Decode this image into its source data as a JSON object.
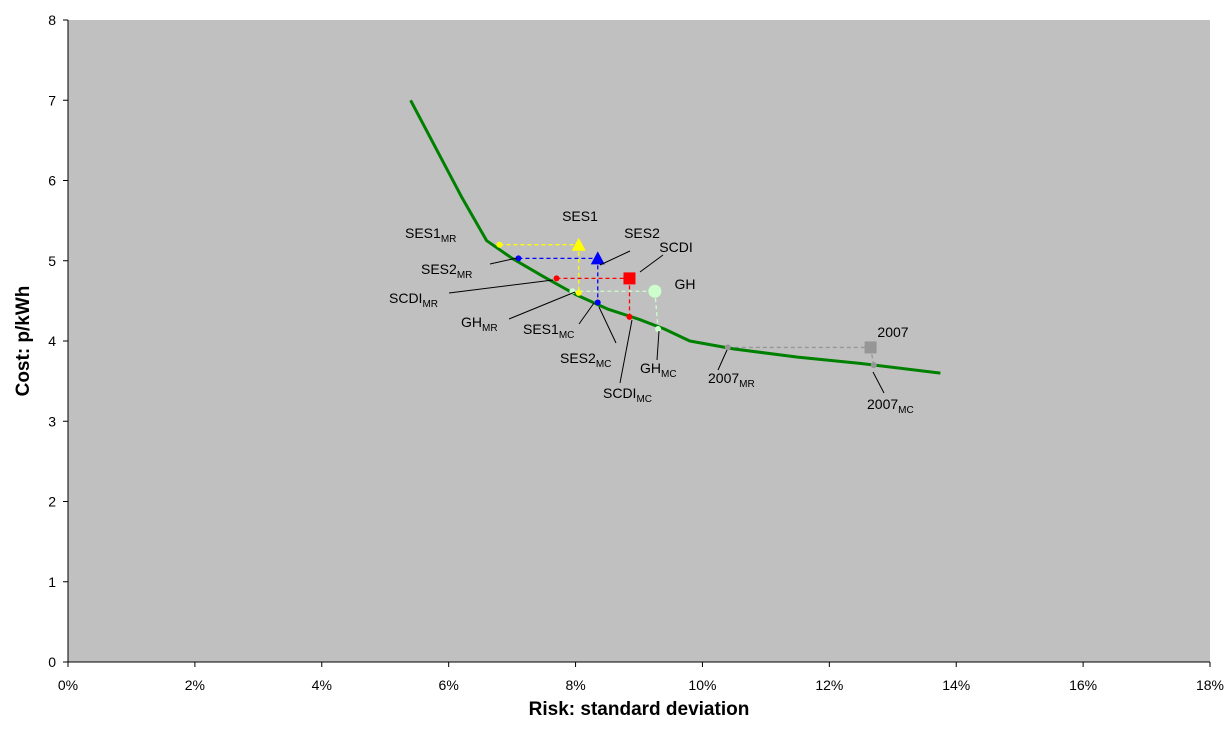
{
  "chart_data": {
    "type": "scatter",
    "title": "",
    "xlabel": "Risk: standard deviation",
    "ylabel": "Cost: p/kWh",
    "xlim": [
      0,
      18
    ],
    "ylim": [
      0,
      8
    ],
    "x_ticks": [
      0,
      2,
      4,
      6,
      8,
      10,
      12,
      14,
      16,
      18
    ],
    "x_tick_labels": [
      "0%",
      "2%",
      "4%",
      "6%",
      "8%",
      "10%",
      "12%",
      "14%",
      "16%",
      "18%"
    ],
    "y_ticks": [
      0,
      1,
      2,
      3,
      4,
      5,
      6,
      7,
      8
    ],
    "y_tick_labels": [
      "0",
      "1",
      "2",
      "3",
      "4",
      "5",
      "6",
      "7",
      "8"
    ],
    "grid": false,
    "legend": "none",
    "colors": {
      "plot_area": "#c0c0c0",
      "frontier": "#008000",
      "SES1": "#ffff00",
      "SES2": "#0000ff",
      "SCDI": "#ff0000",
      "GH": "#ccffcc",
      "2007": "#969696"
    },
    "frontier": {
      "x": [
        5.4,
        5.8,
        6.2,
        6.6,
        7.0,
        7.5,
        8.0,
        8.5,
        9.0,
        9.4,
        9.8,
        10.5,
        11.5,
        12.5,
        13.75
      ],
      "y": [
        7.0,
        6.4,
        5.8,
        5.25,
        5.03,
        4.8,
        4.58,
        4.4,
        4.27,
        4.15,
        4.0,
        3.9,
        3.8,
        3.72,
        3.6
      ]
    },
    "portfolios": [
      {
        "name": "SES1",
        "marker": "triangle",
        "x": 8.05,
        "y": 5.2,
        "mr": {
          "x": 6.8,
          "y": 5.2
        },
        "mc": {
          "x": 8.05,
          "y": 4.6
        }
      },
      {
        "name": "SES2",
        "marker": "triangle",
        "x": 8.35,
        "y": 5.03,
        "mr": {
          "x": 7.1,
          "y": 5.03
        },
        "mc": {
          "x": 8.35,
          "y": 4.48
        }
      },
      {
        "name": "SCDI",
        "marker": "square",
        "x": 8.85,
        "y": 4.78,
        "mr": {
          "x": 7.7,
          "y": 4.78
        },
        "mc": {
          "x": 8.85,
          "y": 4.3
        }
      },
      {
        "name": "GH",
        "marker": "circle",
        "x": 9.25,
        "y": 4.62,
        "mr": {
          "x": 7.95,
          "y": 4.62
        },
        "mc": {
          "x": 9.3,
          "y": 4.15
        }
      },
      {
        "name": "2007",
        "marker": "square",
        "x": 12.65,
        "y": 3.92,
        "mr": {
          "x": 10.4,
          "y": 3.92
        },
        "mc": {
          "x": 12.7,
          "y": 3.7
        }
      }
    ],
    "annotations": [
      {
        "id": "ses1",
        "text": "SES1",
        "sub": ""
      },
      {
        "id": "ses2",
        "text": "SES2",
        "sub": ""
      },
      {
        "id": "scdi",
        "text": "SCDI",
        "sub": ""
      },
      {
        "id": "gh",
        "text": "GH",
        "sub": ""
      },
      {
        "id": "y2007",
        "text": "2007",
        "sub": ""
      },
      {
        "id": "ses1-mr",
        "text": "SES1",
        "sub": "MR"
      },
      {
        "id": "ses2-mr",
        "text": "SES2",
        "sub": "MR"
      },
      {
        "id": "scdi-mr",
        "text": "SCDI",
        "sub": "MR"
      },
      {
        "id": "gh-mr",
        "text": "GH",
        "sub": "MR"
      },
      {
        "id": "ses1-mc",
        "text": "SES1",
        "sub": "MC"
      },
      {
        "id": "ses2-mc",
        "text": "SES2",
        "sub": "MC"
      },
      {
        "id": "gh-mc",
        "text": "GH",
        "sub": "MC"
      },
      {
        "id": "scdi-mc",
        "text": "SCDI",
        "sub": "MC"
      },
      {
        "id": "y2007-mr",
        "text": "2007",
        "sub": "MR"
      },
      {
        "id": "y2007-mc",
        "text": "2007",
        "sub": "MC"
      }
    ]
  }
}
